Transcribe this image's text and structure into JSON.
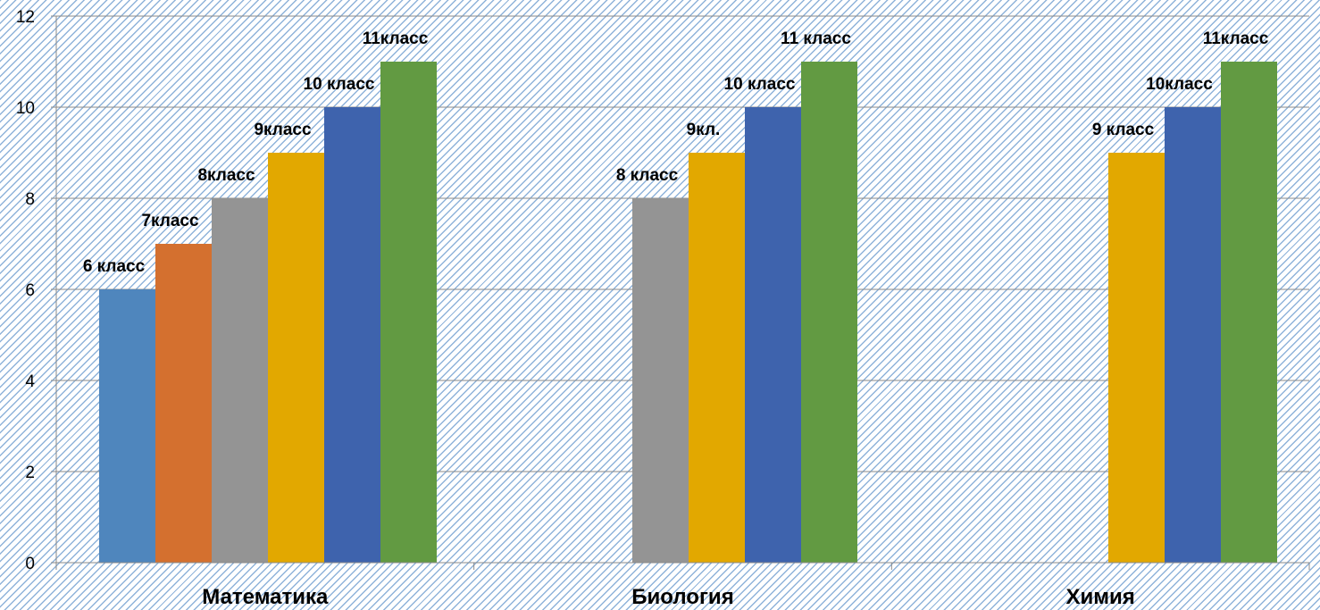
{
  "chart_data": {
    "type": "bar",
    "categories": [
      "Математика",
      "Биология",
      "Химия"
    ],
    "ylim": [
      0,
      12
    ],
    "yticks": [
      0,
      2,
      4,
      6,
      8,
      10,
      12
    ],
    "grid": true,
    "legend": "none",
    "groups": [
      {
        "category": "Математика",
        "bars": [
          {
            "label": "6 класс",
            "value": 6,
            "color": "#4f86bd"
          },
          {
            "label": "7класс",
            "value": 7,
            "color": "#d4702f"
          },
          {
            "label": "8класс",
            "value": 8,
            "color": "#949494"
          },
          {
            "label": "9класс",
            "value": 9,
            "color": "#e2a800"
          },
          {
            "label": "10 класс",
            "value": 10,
            "color": "#3e63ad"
          },
          {
            "label": "11класс",
            "value": 11,
            "color": "#629a42"
          }
        ]
      },
      {
        "category": "Биология",
        "bars": [
          {
            "label": "8 класс",
            "value": 8,
            "color": "#949494"
          },
          {
            "label": "9кл.",
            "value": 9,
            "color": "#e2a800"
          },
          {
            "label": "10 класс",
            "value": 10,
            "color": "#3e63ad"
          },
          {
            "label": "11 класс",
            "value": 11,
            "color": "#629a42"
          }
        ]
      },
      {
        "category": "Химия",
        "bars": [
          {
            "label": "9 класс",
            "value": 9,
            "color": "#e2a800"
          },
          {
            "label": "10класс",
            "value": 10,
            "color": "#3e63ad"
          },
          {
            "label": "11класс",
            "value": 11,
            "color": "#629a42"
          }
        ]
      }
    ]
  }
}
